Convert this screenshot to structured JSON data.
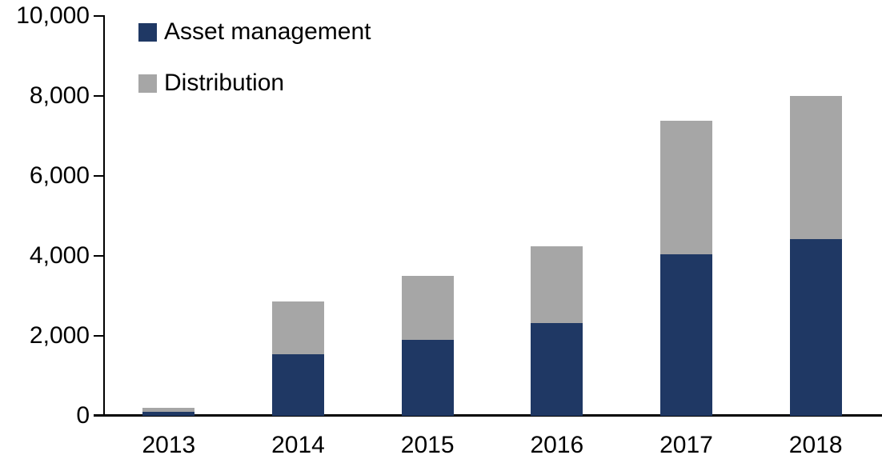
{
  "chart_data": {
    "type": "bar",
    "stacked": true,
    "title": "",
    "xlabel": "",
    "ylabel": "",
    "categories": [
      "2013",
      "2014",
      "2015",
      "2016",
      "2017",
      "2018"
    ],
    "series": [
      {
        "name": "Asset management",
        "color": "#1f3864",
        "values": [
          100,
          1550,
          1900,
          2320,
          4050,
          4420
        ]
      },
      {
        "name": "Distribution",
        "color": "#a6a6a6",
        "values": [
          110,
          1320,
          1600,
          1930,
          3330,
          3580
        ]
      }
    ],
    "ylim": [
      0,
      10000
    ],
    "ytick_interval": 2000,
    "yticks": [
      0,
      2000,
      4000,
      6000,
      8000,
      10000
    ],
    "ytick_labels": [
      "0",
      "2,000",
      "4,000",
      "6,000",
      "8,000",
      "10,000"
    ],
    "grid": false,
    "legend_position": "top-left",
    "axis_color": "#000000",
    "background_color": "#ffffff"
  },
  "legend": {
    "items": [
      {
        "label": "Asset management",
        "color": "#1f3864"
      },
      {
        "label": "Distribution",
        "color": "#a6a6a6"
      }
    ]
  }
}
